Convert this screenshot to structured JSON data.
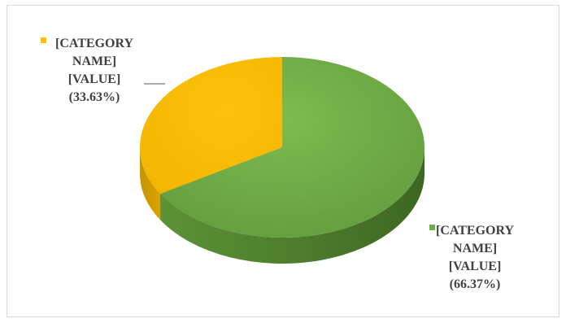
{
  "chart_data": {
    "type": "pie",
    "slices": [
      {
        "label_lines": [
          "[CATEGORY",
          "NAME]",
          "[VALUE]",
          "(33.63%)"
        ],
        "percent": 33.63,
        "color": "#ffc000"
      },
      {
        "label_lines": [
          "[CATEGORY",
          "NAME]",
          "[VALUE]",
          "(66.37%)"
        ],
        "percent": 66.37,
        "color": "#70ad47"
      }
    ],
    "style": "3d",
    "legend": "none",
    "data_labels": "outside"
  }
}
